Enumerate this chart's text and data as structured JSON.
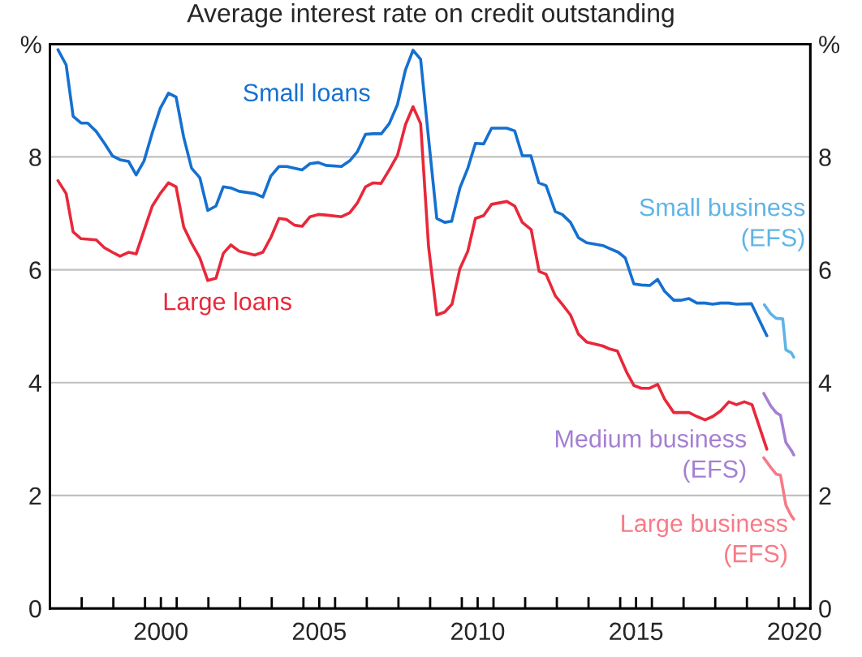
{
  "chart_data": {
    "type": "line",
    "title": "Average interest rate on credit outstanding",
    "xlim": [
      1997,
      2021
    ],
    "ylim": [
      0,
      10
    ],
    "y2lim": [
      0,
      10
    ],
    "xticks": [
      {
        "value": 1998,
        "label": null
      },
      {
        "value": 1999,
        "label": null
      },
      {
        "value": 2000,
        "label": null
      },
      {
        "value": 2000.5,
        "label": "2000"
      },
      {
        "value": 2001,
        "label": null
      },
      {
        "value": 2002,
        "label": null
      },
      {
        "value": 2003,
        "label": null
      },
      {
        "value": 2004,
        "label": null
      },
      {
        "value": 2005,
        "label": null
      },
      {
        "value": 2005.5,
        "label": "2005"
      },
      {
        "value": 2006,
        "label": null
      },
      {
        "value": 2007,
        "label": null
      },
      {
        "value": 2008,
        "label": null
      },
      {
        "value": 2009,
        "label": null
      },
      {
        "value": 2010,
        "label": null
      },
      {
        "value": 2010.5,
        "label": "2010"
      },
      {
        "value": 2011,
        "label": null
      },
      {
        "value": 2012,
        "label": null
      },
      {
        "value": 2013,
        "label": null
      },
      {
        "value": 2014,
        "label": null
      },
      {
        "value": 2015,
        "label": null
      },
      {
        "value": 2015.5,
        "label": "2015"
      },
      {
        "value": 2016,
        "label": null
      },
      {
        "value": 2017,
        "label": null
      },
      {
        "value": 2018,
        "label": null
      },
      {
        "value": 2019,
        "label": null
      },
      {
        "value": 2020,
        "label": null
      },
      {
        "value": 2020.5,
        "label": "2020"
      }
    ],
    "yticks": [
      0,
      2,
      4,
      6,
      8,
      {
        "value": 10,
        "label": "%"
      }
    ],
    "y2ticks": [
      0,
      2,
      4,
      6,
      8,
      {
        "value": 10,
        "label": "%"
      }
    ],
    "grid": "y",
    "legend": false,
    "marker": "none",
    "line_style": "solid",
    "series": [
      {
        "name": "Small loans",
        "color": "#1570d0",
        "x": [
          1997.25,
          1997.51,
          1997.73,
          1997.98,
          1998.19,
          1998.46,
          1998.72,
          1998.97,
          1999.21,
          1999.48,
          1999.72,
          1999.97,
          2000.23,
          2000.48,
          2000.74,
          2000.98,
          2001.22,
          2001.47,
          2001.73,
          2001.98,
          2002.24,
          2002.47,
          2002.71,
          2002.97,
          2003.46,
          2003.72,
          2003.97,
          2004.23,
          2004.47,
          2004.96,
          2005.21,
          2005.47,
          2005.71,
          2006.2,
          2006.46,
          2006.7,
          2006.96,
          2007.2,
          2007.46,
          2007.71,
          2007.97,
          2008.22,
          2008.46,
          2008.7,
          2008.95,
          2009.21,
          2009.46,
          2009.68,
          2009.94,
          2010.19,
          2010.43,
          2010.69,
          2010.94,
          2011.42,
          2011.67,
          2011.91,
          2012.18,
          2012.43,
          2012.66,
          2012.95,
          2013.17,
          2013.43,
          2013.68,
          2013.94,
          2014.45,
          2014.65,
          2014.94,
          2015.16,
          2015.43,
          2015.67,
          2015.93,
          2016.18,
          2016.4,
          2016.69,
          2016.91,
          2017.17,
          2017.42,
          2017.68,
          2017.92,
          2018.17,
          2018.43,
          2018.67,
          2019.14,
          2019.63
        ],
        "values": [
          9.9,
          9.63,
          8.72,
          8.6,
          8.6,
          8.45,
          8.24,
          8.02,
          7.95,
          7.92,
          7.68,
          7.93,
          8.43,
          8.86,
          9.13,
          9.06,
          8.35,
          7.8,
          7.63,
          7.05,
          7.13,
          7.47,
          7.45,
          7.39,
          7.35,
          7.29,
          7.66,
          7.83,
          7.83,
          7.77,
          7.88,
          7.9,
          7.85,
          7.83,
          7.93,
          8.09,
          8.4,
          8.41,
          8.41,
          8.59,
          8.93,
          9.54,
          9.89,
          9.73,
          8.33,
          6.91,
          6.84,
          6.86,
          7.45,
          7.8,
          8.24,
          8.23,
          8.51,
          8.51,
          8.46,
          8.02,
          8.02,
          7.54,
          7.49,
          7.03,
          6.98,
          6.84,
          6.57,
          6.48,
          6.43,
          6.38,
          6.31,
          6.21,
          5.75,
          5.73,
          5.72,
          5.83,
          5.62,
          5.46,
          5.46,
          5.49,
          5.41,
          5.41,
          5.39,
          5.41,
          5.41,
          5.39,
          5.4,
          4.83
        ]
      },
      {
        "name": "Large loans",
        "color": "#e8283a",
        "x": [
          1997.25,
          1997.51,
          1997.73,
          1997.98,
          1998.46,
          1998.72,
          1998.97,
          1999.21,
          1999.48,
          1999.72,
          1999.97,
          2000.23,
          2000.48,
          2000.74,
          2000.98,
          2001.22,
          2001.47,
          2001.73,
          2001.98,
          2002.24,
          2002.47,
          2002.71,
          2002.97,
          2003.46,
          2003.72,
          2003.97,
          2004.23,
          2004.47,
          2004.72,
          2004.96,
          2005.21,
          2005.47,
          2005.71,
          2006.2,
          2006.46,
          2006.7,
          2006.96,
          2007.2,
          2007.45,
          2007.71,
          2007.97,
          2008.22,
          2008.46,
          2008.7,
          2008.95,
          2009.21,
          2009.46,
          2009.69,
          2009.94,
          2010.19,
          2010.43,
          2010.69,
          2010.94,
          2011.42,
          2011.67,
          2011.91,
          2012.19,
          2012.44,
          2012.66,
          2012.95,
          2013.17,
          2013.43,
          2013.68,
          2013.94,
          2014.45,
          2014.65,
          2014.91,
          2015.2,
          2015.43,
          2015.67,
          2015.93,
          2016.18,
          2016.4,
          2016.69,
          2017.17,
          2017.42,
          2017.68,
          2017.92,
          2018.17,
          2018.43,
          2018.67,
          2018.92,
          2019.16,
          2019.63
        ],
        "values": [
          7.58,
          7.35,
          6.67,
          6.55,
          6.53,
          6.39,
          6.31,
          6.24,
          6.31,
          6.28,
          6.7,
          7.13,
          7.35,
          7.54,
          7.47,
          6.76,
          6.47,
          6.21,
          5.81,
          5.85,
          6.29,
          6.44,
          6.33,
          6.26,
          6.31,
          6.57,
          6.91,
          6.89,
          6.79,
          6.77,
          6.94,
          6.98,
          6.97,
          6.94,
          7.01,
          7.18,
          7.47,
          7.54,
          7.53,
          7.77,
          8.03,
          8.57,
          8.89,
          8.59,
          6.41,
          5.2,
          5.25,
          5.39,
          6.02,
          6.33,
          6.91,
          6.96,
          7.16,
          7.21,
          7.13,
          6.84,
          6.71,
          5.97,
          5.92,
          5.54,
          5.39,
          5.2,
          4.86,
          4.72,
          4.65,
          4.6,
          4.56,
          4.19,
          3.95,
          3.9,
          3.9,
          3.97,
          3.71,
          3.47,
          3.47,
          3.4,
          3.34,
          3.4,
          3.5,
          3.66,
          3.61,
          3.66,
          3.61,
          2.82
        ]
      },
      {
        "name": "Small business\n(EFS)",
        "color": "#5fb4e6",
        "x": [
          2019.55,
          2019.75,
          2019.92,
          2020.13,
          2020.23,
          2020.4,
          2020.48
        ],
        "values": [
          5.38,
          5.22,
          5.14,
          5.13,
          4.58,
          4.53,
          4.45
        ]
      },
      {
        "name": "Medium business\n(EFS)",
        "color": "#a57fd2",
        "x": [
          2019.53,
          2019.75,
          2019.92,
          2020.06,
          2020.23,
          2020.4,
          2020.48
        ],
        "values": [
          3.81,
          3.59,
          3.47,
          3.42,
          2.94,
          2.8,
          2.72
        ]
      },
      {
        "name": "Large business\n(EFS)",
        "color": "#f87a86",
        "x": [
          2019.53,
          2019.75,
          2019.92,
          2020.06,
          2020.23,
          2020.4,
          2020.48
        ],
        "values": [
          2.67,
          2.5,
          2.38,
          2.36,
          1.83,
          1.64,
          1.58
        ]
      }
    ]
  }
}
